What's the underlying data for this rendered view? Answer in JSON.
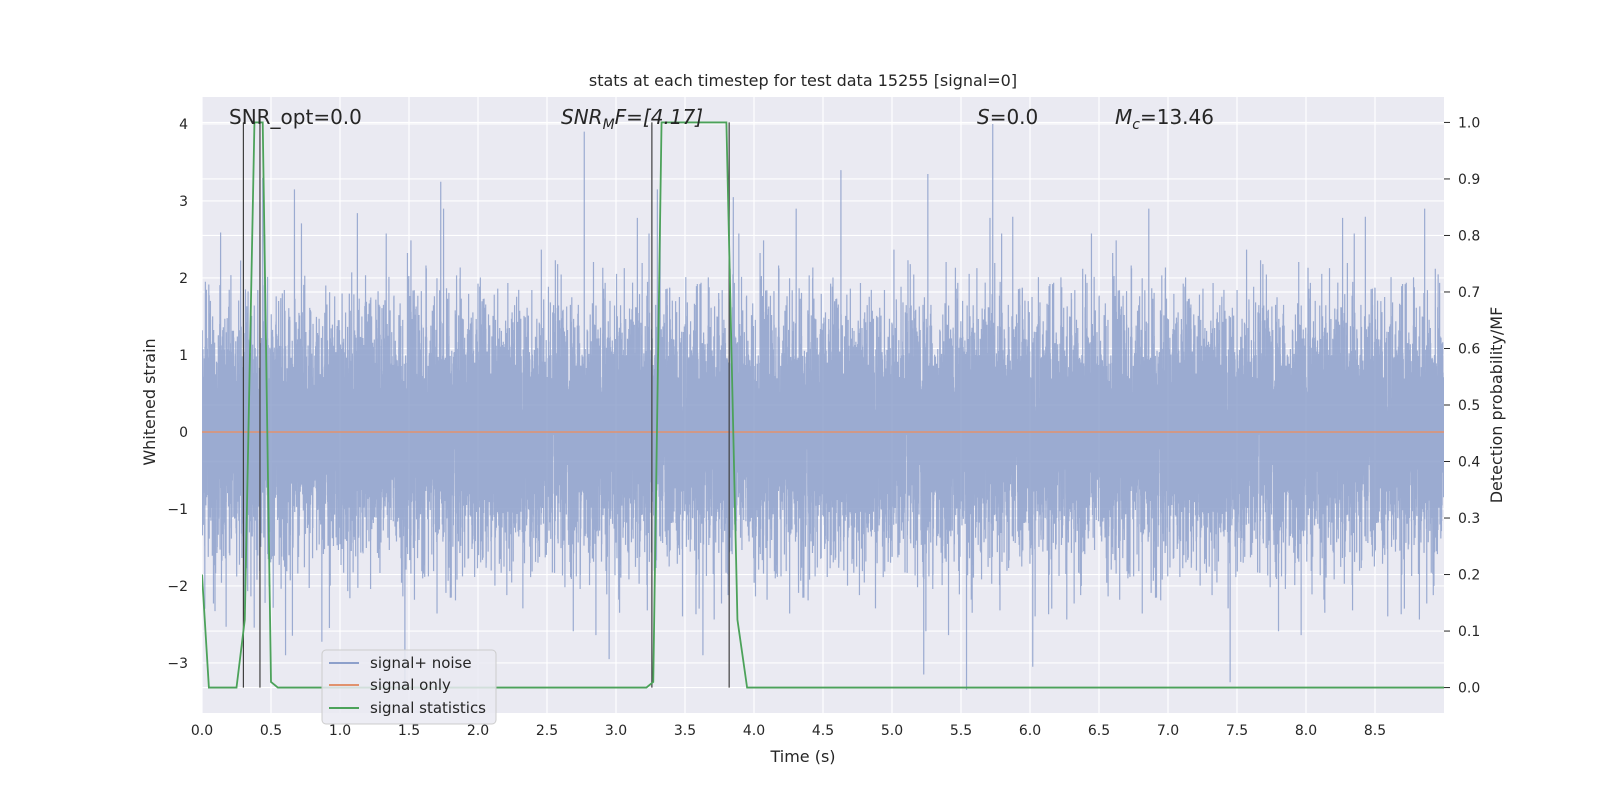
{
  "chart_data": {
    "type": "line",
    "title": "stats at each timestep for test data 15255 [signal=0]",
    "xlabel": "Time (s)",
    "ylabel": "Whitened strain",
    "y2label": "Detection probability/MF",
    "xlim": [
      0.0,
      9.0
    ],
    "ylim": [
      -3.65,
      4.35
    ],
    "y2lim": [
      -0.045,
      1.045
    ],
    "xticks": [
      0.0,
      0.5,
      1.0,
      1.5,
      2.0,
      2.5,
      3.0,
      3.5,
      4.0,
      4.5,
      5.0,
      5.5,
      6.0,
      6.5,
      7.0,
      7.5,
      8.0,
      8.5
    ],
    "xtick_labels": [
      "0.0",
      "0.5",
      "1.0",
      "1.5",
      "2.0",
      "2.5",
      "3.0",
      "3.5",
      "4.0",
      "4.5",
      "5.0",
      "5.5",
      "6.0",
      "6.5",
      "7.0",
      "7.5",
      "8.0",
      "8.5"
    ],
    "yticks": [
      -3,
      -2,
      -1,
      0,
      1,
      2,
      3,
      4
    ],
    "ytick_labels": [
      "−3",
      "−2",
      "−1",
      "0",
      "1",
      "2",
      "3",
      "4"
    ],
    "y2ticks": [
      0.0,
      0.1,
      0.2,
      0.3,
      0.4,
      0.5,
      0.6,
      0.7,
      0.8,
      0.9,
      1.0
    ],
    "y2tick_labels": [
      "0.0",
      "0.1",
      "0.2",
      "0.3",
      "0.4",
      "0.5",
      "0.6",
      "0.7",
      "0.8",
      "0.9",
      "1.0"
    ],
    "grid": true,
    "legend_position": "lower-left",
    "annotations": {
      "snr_opt": "SNR_opt=0.0",
      "snr_mf_main": "SNR",
      "snr_mf_sub": "M",
      "snr_mf_rest": "F=[4.17]",
      "s_sym": "S",
      "s_rest": "=0.0",
      "mc_main": "M",
      "mc_sub": "c",
      "mc_rest": "=13.46"
    },
    "series": [
      {
        "name": "signal+ noise",
        "color": "#8da0cb",
        "axis": "left",
        "kind": "noise",
        "sample_rate_hz": 2048,
        "envelope_peaks": [
          {
            "x": 0.44,
            "y": 3.3
          },
          {
            "x": 0.67,
            "y": 3.15
          },
          {
            "x": 1.73,
            "y": 3.25
          },
          {
            "x": 2.77,
            "y": 3.9
          },
          {
            "x": 3.3,
            "y": 3.15
          },
          {
            "x": 3.85,
            "y": 3.05
          },
          {
            "x": 4.63,
            "y": 3.4
          },
          {
            "x": 5.26,
            "y": 3.35
          },
          {
            "x": 5.73,
            "y": 4.0
          },
          {
            "x": 8.86,
            "y": 2.9
          }
        ],
        "envelope_troughs": [
          {
            "x": 1.47,
            "y": -3.35
          },
          {
            "x": 2.95,
            "y": -2.95
          },
          {
            "x": 3.63,
            "y": -2.9
          },
          {
            "x": 5.23,
            "y": -3.15
          },
          {
            "x": 5.54,
            "y": -3.35
          },
          {
            "x": 6.02,
            "y": -3.05
          },
          {
            "x": 7.45,
            "y": -3.25
          }
        ]
      },
      {
        "name": "signal only",
        "color": "#e1926e",
        "axis": "left",
        "x": [
          0.0,
          9.0
        ],
        "y": [
          0.0,
          0.0
        ]
      },
      {
        "name": "signal statistics",
        "color": "#4ca25a",
        "axis": "right",
        "x": [
          0.0,
          0.05,
          0.25,
          0.31,
          0.38,
          0.44,
          0.5,
          0.55,
          3.22,
          3.27,
          3.33,
          3.8,
          3.88,
          3.95,
          9.0
        ],
        "y": [
          0.2,
          0.0,
          0.0,
          0.12,
          1.0,
          1.0,
          0.01,
          0.0,
          0.0,
          0.01,
          1.0,
          1.0,
          0.12,
          0.0,
          0.0
        ]
      }
    ],
    "vertical_markers": {
      "color": "#404040",
      "x": [
        0.3,
        0.42,
        3.26,
        3.82
      ]
    }
  }
}
